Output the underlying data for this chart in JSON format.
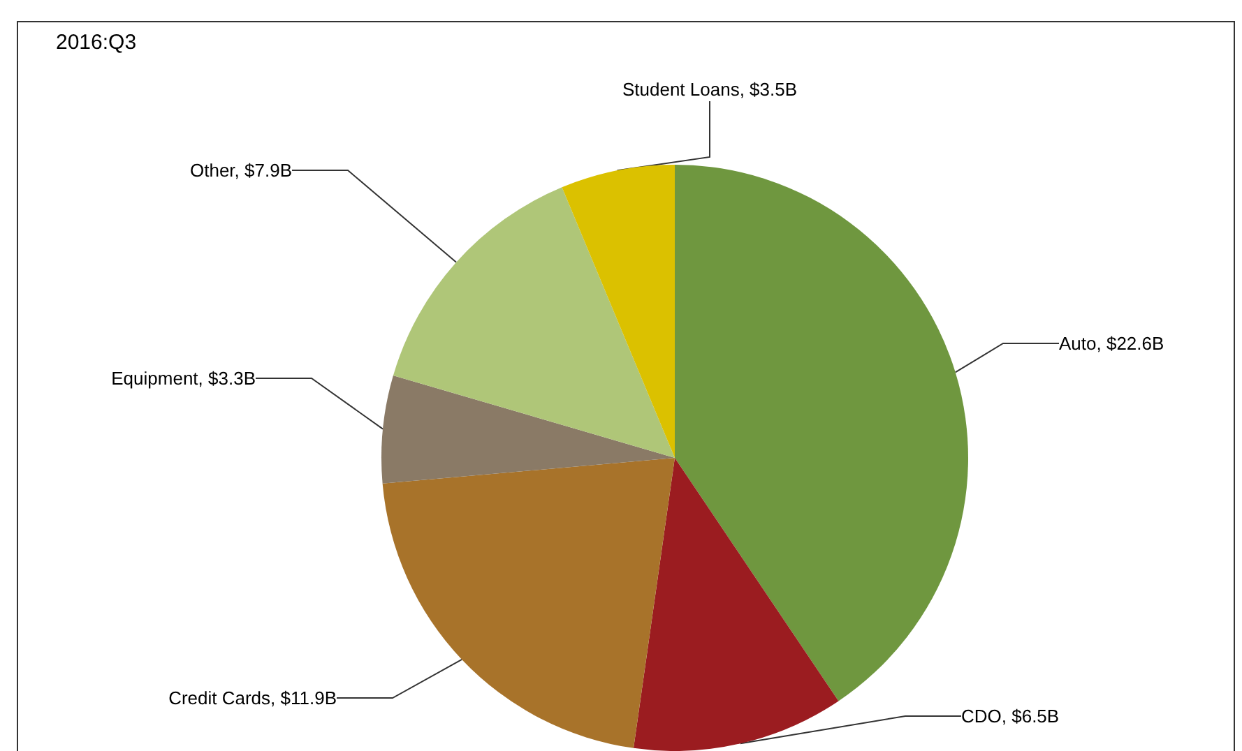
{
  "chart_data": {
    "type": "pie",
    "title": "2016:Q3",
    "categories": [
      "Auto",
      "CDO",
      "Credit Cards",
      "Equipment",
      "Other",
      "Student Loans"
    ],
    "values": [
      22.6,
      6.5,
      11.9,
      3.3,
      7.9,
      3.5
    ],
    "value_labels": [
      "$22.6B",
      "$6.5B",
      "$11.9B",
      "$3.3B",
      "$7.9B",
      "$3.5B"
    ],
    "colors": [
      "#6f973f",
      "#9b1c20",
      "#a8732a",
      "#8a7a66",
      "#afc678",
      "#dbc100"
    ],
    "legend": false
  }
}
